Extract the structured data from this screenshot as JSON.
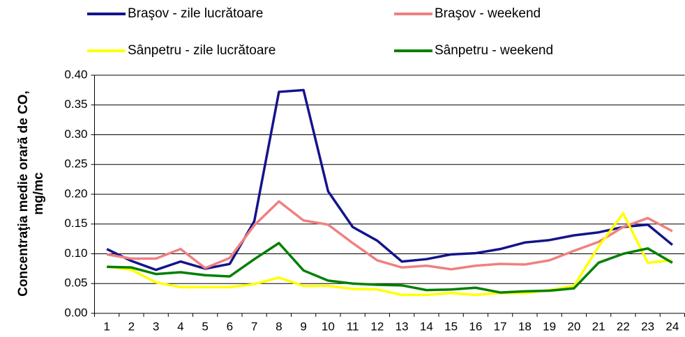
{
  "chart_data": {
    "type": "line",
    "ylabel": [
      "Concentraţia medie orară de CO,",
      "mg/mc"
    ],
    "categories": [
      "1",
      "2",
      "3",
      "4",
      "5",
      "6",
      "7",
      "8",
      "9",
      "10",
      "11",
      "12",
      "13",
      "14",
      "15",
      "16",
      "17",
      "18",
      "19",
      "20",
      "21",
      "22",
      "23",
      "24"
    ],
    "series": [
      {
        "name": "Braşov - zile lucrătoare",
        "color": "#14148c",
        "values": [
          0.108,
          0.088,
          0.073,
          0.087,
          0.075,
          0.083,
          0.155,
          0.372,
          0.375,
          0.205,
          0.145,
          0.122,
          0.087,
          0.091,
          0.099,
          0.101,
          0.108,
          0.119,
          0.123,
          0.131,
          0.136,
          0.145,
          0.149,
          0.115
        ]
      },
      {
        "name": "Braşov - weekend",
        "color": "#f08080",
        "values": [
          0.099,
          0.092,
          0.092,
          0.108,
          0.076,
          0.093,
          0.148,
          0.188,
          0.156,
          0.149,
          0.118,
          0.089,
          0.077,
          0.08,
          0.074,
          0.08,
          0.083,
          0.082,
          0.089,
          0.105,
          0.12,
          0.145,
          0.16,
          0.138
        ]
      },
      {
        "name": "Sânpetru - zile lucrătoare",
        "color": "#ffff00",
        "values": [
          0.079,
          0.073,
          0.052,
          0.044,
          0.044,
          0.044,
          0.049,
          0.06,
          0.046,
          0.046,
          0.041,
          0.04,
          0.031,
          0.031,
          0.034,
          0.031,
          0.034,
          0.034,
          0.039,
          0.046,
          0.112,
          0.168,
          0.085,
          0.089
        ]
      },
      {
        "name": "Sânpetru - weekend",
        "color": "#008000",
        "values": [
          0.078,
          0.077,
          0.066,
          0.069,
          0.064,
          0.062,
          0.091,
          0.118,
          0.072,
          0.055,
          0.05,
          0.048,
          0.047,
          0.039,
          0.04,
          0.043,
          0.035,
          0.037,
          0.038,
          0.042,
          0.085,
          0.1,
          0.109,
          0.085
        ]
      }
    ],
    "ylim": [
      0,
      0.4
    ],
    "yticks": [
      {
        "value": 0,
        "label": "0.00"
      },
      0.05,
      {
        "value": 0.1,
        "label": "0.10"
      },
      0.15,
      {
        "value": 0.2,
        "label": "0.20"
      },
      0.25,
      {
        "value": 0.3,
        "label": "0.30"
      },
      0.35,
      {
        "value": 0.4,
        "label": "0.40"
      }
    ],
    "grid": true
  }
}
